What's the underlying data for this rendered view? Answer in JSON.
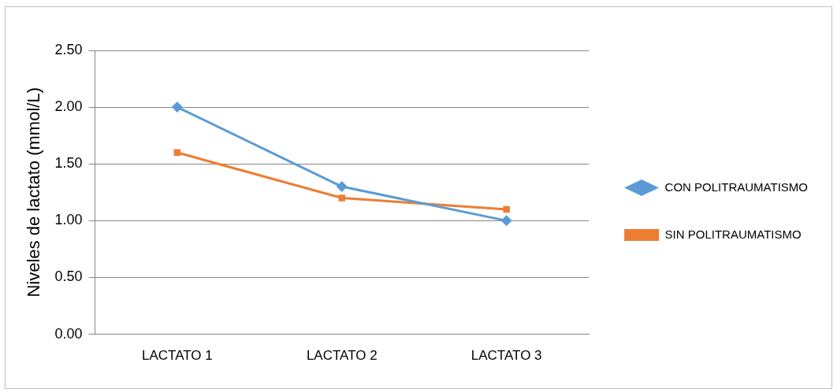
{
  "chart_data": {
    "type": "line",
    "ylabel": "Niveles de lactato (mmol/L)",
    "categories": [
      "LACTATO 1",
      "LACTATO 2",
      "LACTATO 3"
    ],
    "series": [
      {
        "name": "CON POLITRAUMATISMO",
        "color": "#5b9bd5",
        "marker": "diamond",
        "values": [
          2.0,
          1.3,
          1.0
        ]
      },
      {
        "name": "SIN POLITRAUMATISMO",
        "color": "#ed7d31",
        "marker": "square",
        "values": [
          1.6,
          1.2,
          1.1
        ]
      }
    ],
    "ylim": [
      0,
      2.5
    ],
    "yticks": [
      {
        "value": 0,
        "label": "0.00"
      },
      {
        "value": 0.5,
        "label": "0.50"
      },
      {
        "value": 1,
        "label": "1.00"
      },
      {
        "value": 1.5,
        "label": "1.50"
      },
      {
        "value": 2,
        "label": "2.00"
      },
      {
        "value": 2.5,
        "label": "2.50"
      }
    ],
    "grid": "y",
    "legend": "right",
    "line_style": "solid"
  }
}
